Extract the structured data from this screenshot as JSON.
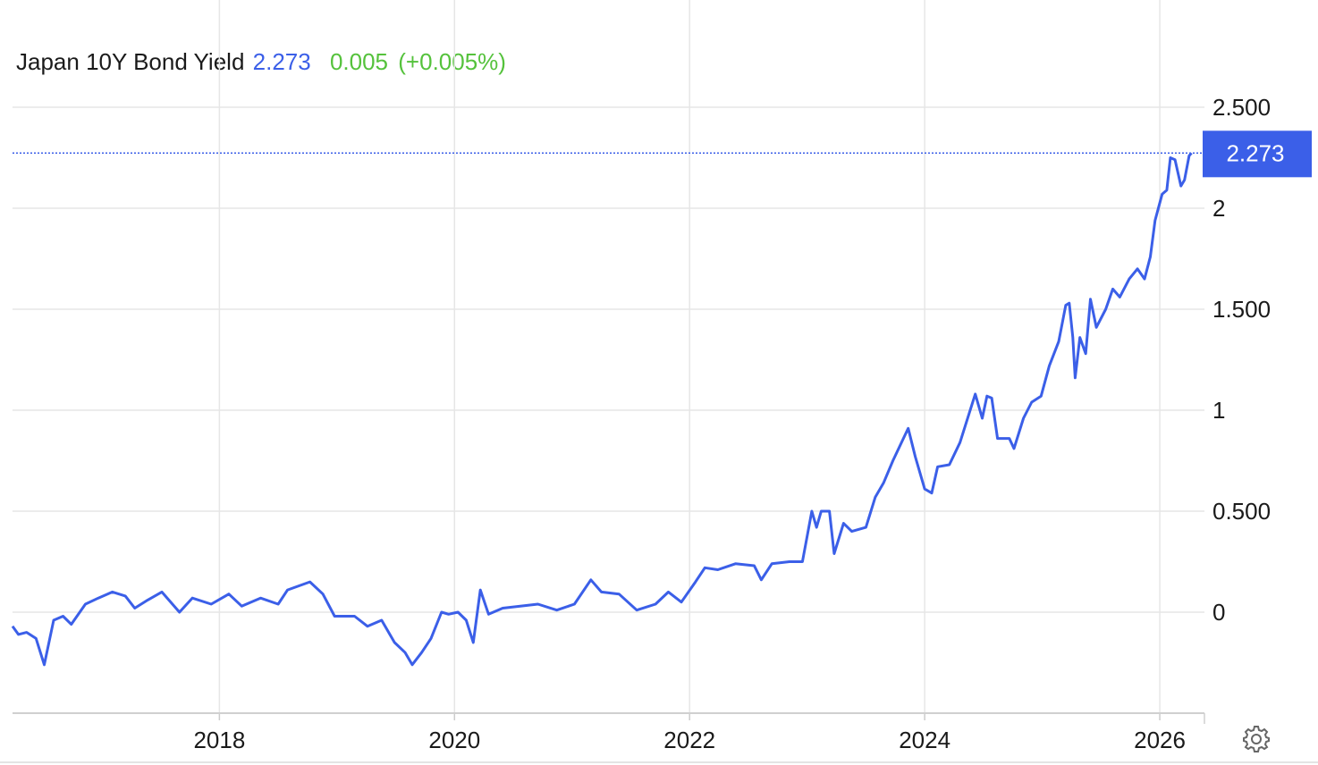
{
  "chart_data": {
    "type": "line",
    "title": "Japan 10Y Bond Yield",
    "change": 0.005,
    "change_percent": "(+0.005%)",
    "color": "#3b5fe8",
    "change_color": "#55c23c",
    "grid": true,
    "xlim": [
      2016.24,
      2026.38
    ],
    "xticks": [
      2018,
      2020,
      2022,
      2024,
      2026
    ],
    "ylim": [
      -0.5,
      3.0
    ],
    "yticks": [
      {
        "value": 2.5,
        "label": "2.500"
      },
      2,
      {
        "value": 1.5,
        "label": "1.500"
      },
      1,
      {
        "value": 0.5,
        "label": "0.500"
      },
      0
    ],
    "x": [
      2016.24,
      2016.29,
      2016.36,
      2016.44,
      2016.51,
      2016.59,
      2016.67,
      2016.74,
      2016.86,
      2016.97,
      2017.09,
      2017.2,
      2017.28,
      2017.39,
      2017.51,
      2017.66,
      2017.77,
      2017.93,
      2018.08,
      2018.19,
      2018.35,
      2018.5,
      2018.58,
      2018.77,
      2018.88,
      2018.98,
      2019.15,
      2019.26,
      2019.38,
      2019.49,
      2019.58,
      2019.64,
      2019.72,
      2019.8,
      2019.89,
      2019.95,
      2020.03,
      2020.1,
      2020.16,
      2020.22,
      2020.29,
      2020.41,
      2020.56,
      2020.71,
      2020.87,
      2021.02,
      2021.16,
      2021.25,
      2021.4,
      2021.55,
      2021.71,
      2021.82,
      2021.93,
      2022.05,
      2022.13,
      2022.24,
      2022.39,
      2022.55,
      2022.61,
      2022.7,
      2022.85,
      2022.96,
      2023.04,
      2023.08,
      2023.12,
      2023.19,
      2023.23,
      2023.31,
      2023.38,
      2023.5,
      2023.58,
      2023.65,
      2023.73,
      2023.86,
      2023.92,
      2024.0,
      2024.06,
      2024.11,
      2024.21,
      2024.3,
      2024.43,
      2024.49,
      2024.53,
      2024.57,
      2024.62,
      2024.72,
      2024.76,
      2024.84,
      2024.91,
      2024.99,
      2025.06,
      2025.14,
      2025.2,
      2025.23,
      2025.26,
      2025.28,
      2025.32,
      2025.37,
      2025.41,
      2025.46,
      2025.54,
      2025.6,
      2025.66,
      2025.74,
      2025.81,
      2025.87,
      2025.92,
      2025.96,
      2026.02,
      2026.06,
      2026.09,
      2026.13,
      2026.18,
      2026.21,
      2026.25,
      2026.27
    ],
    "values": [
      -0.07,
      -0.11,
      -0.1,
      -0.13,
      -0.26,
      -0.04,
      -0.02,
      -0.06,
      0.04,
      0.07,
      0.1,
      0.08,
      0.02,
      0.06,
      0.1,
      0.0,
      0.07,
      0.04,
      0.09,
      0.03,
      0.07,
      0.04,
      0.11,
      0.15,
      0.09,
      -0.02,
      -0.02,
      -0.07,
      -0.04,
      -0.15,
      -0.2,
      -0.26,
      -0.2,
      -0.13,
      0.0,
      -0.01,
      0.0,
      -0.04,
      -0.15,
      0.11,
      -0.01,
      0.02,
      0.03,
      0.04,
      0.01,
      0.04,
      0.16,
      0.1,
      0.09,
      0.01,
      0.04,
      0.1,
      0.05,
      0.15,
      0.22,
      0.21,
      0.24,
      0.23,
      0.16,
      0.24,
      0.25,
      0.25,
      0.5,
      0.42,
      0.5,
      0.5,
      0.29,
      0.44,
      0.4,
      0.42,
      0.57,
      0.64,
      0.75,
      0.91,
      0.77,
      0.61,
      0.59,
      0.72,
      0.73,
      0.84,
      1.08,
      0.96,
      1.07,
      1.06,
      0.86,
      0.86,
      0.81,
      0.96,
      1.04,
      1.07,
      1.22,
      1.34,
      1.52,
      1.53,
      1.36,
      1.16,
      1.36,
      1.28,
      1.55,
      1.41,
      1.5,
      1.6,
      1.56,
      1.65,
      1.7,
      1.65,
      1.76,
      1.94,
      2.07,
      2.09,
      2.25,
      2.24,
      2.11,
      2.14,
      2.26,
      2.273
    ]
  }
}
